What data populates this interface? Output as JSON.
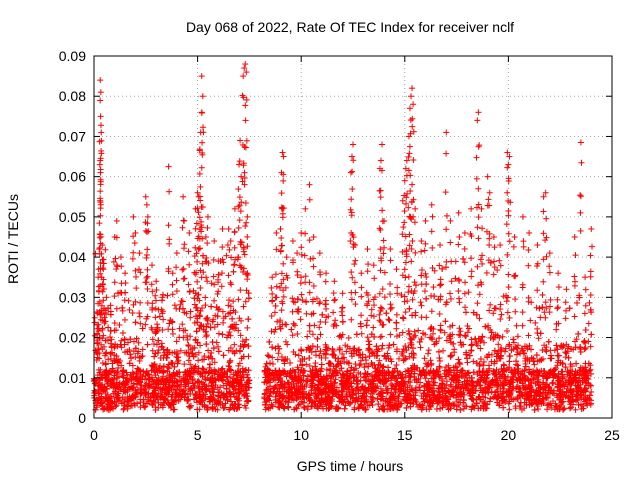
{
  "chart_data": {
    "type": "scatter",
    "title": "Day 068 of 2022, Rate Of TEC Index for receiver nclf",
    "xlabel": "GPS time / hours",
    "ylabel": "ROTI / TECUs",
    "xlim": [
      0,
      25
    ],
    "ylim": [
      0,
      0.09
    ],
    "x_ticks": [
      0,
      5,
      10,
      15,
      20,
      25
    ],
    "x_tick_labels": [
      "0",
      "5",
      "10",
      "15",
      "20",
      "25"
    ],
    "y_ticks": [
      0,
      0.01,
      0.02,
      0.03,
      0.04,
      0.05,
      0.06,
      0.07,
      0.08,
      0.09
    ],
    "y_tick_labels": [
      "0",
      "0.01",
      "0.02",
      "0.03",
      "0.04",
      "0.05",
      "0.06",
      "0.07",
      "0.08",
      "0.09"
    ],
    "grid": true,
    "marker": "+",
    "marker_color": "#ff0000",
    "data_gap_hours": [
      7.5,
      8.2
    ],
    "series": [
      {
        "name": "ROTI",
        "points": [
          [
            0.15,
            0.021
          ],
          [
            0.2,
            0.035
          ],
          [
            0.25,
            0.042
          ],
          [
            0.3,
            0.084
          ],
          [
            0.33,
            0.081
          ],
          [
            0.32,
            0.075
          ],
          [
            0.35,
            0.071
          ],
          [
            0.3,
            0.064
          ],
          [
            0.28,
            0.063
          ],
          [
            0.4,
            0.043
          ],
          [
            0.45,
            0.037
          ],
          [
            0.6,
            0.03
          ],
          [
            0.8,
            0.028
          ],
          [
            1.0,
            0.045
          ],
          [
            1.1,
            0.049
          ],
          [
            1.3,
            0.04
          ],
          [
            1.5,
            0.036
          ],
          [
            1.9,
            0.05
          ],
          [
            2.0,
            0.046
          ],
          [
            2.2,
            0.041
          ],
          [
            2.5,
            0.055
          ],
          [
            2.55,
            0.053
          ],
          [
            2.6,
            0.05
          ],
          [
            2.8,
            0.038
          ],
          [
            3.0,
            0.034
          ],
          [
            3.3,
            0.03
          ],
          [
            3.6,
            0.0625
          ],
          [
            3.8,
            0.036
          ],
          [
            4.0,
            0.041
          ],
          [
            4.3,
            0.055
          ],
          [
            4.35,
            0.049
          ],
          [
            4.6,
            0.046
          ],
          [
            4.9,
            0.052
          ],
          [
            5.0,
            0.056
          ],
          [
            5.05,
            0.055
          ],
          [
            5.1,
            0.0665
          ],
          [
            5.15,
            0.071
          ],
          [
            5.2,
            0.076
          ],
          [
            5.25,
            0.08
          ],
          [
            5.2,
            0.085
          ],
          [
            5.4,
            0.045
          ],
          [
            5.5,
            0.05
          ],
          [
            5.8,
            0.044
          ],
          [
            6.0,
            0.039
          ],
          [
            6.2,
            0.047
          ],
          [
            6.5,
            0.047
          ],
          [
            6.6,
            0.044
          ],
          [
            6.8,
            0.052
          ],
          [
            7.0,
            0.063
          ],
          [
            7.05,
            0.069
          ],
          [
            7.1,
            0.06
          ],
          [
            7.2,
            0.085
          ],
          [
            7.25,
            0.087
          ],
          [
            7.3,
            0.088
          ],
          [
            7.35,
            0.086
          ],
          [
            7.4,
            0.05
          ],
          [
            8.6,
            0.035
          ],
          [
            8.8,
            0.046
          ],
          [
            9.0,
            0.047
          ],
          [
            9.05,
            0.061
          ],
          [
            9.1,
            0.066
          ],
          [
            9.15,
            0.065
          ],
          [
            9.3,
            0.04
          ],
          [
            9.6,
            0.044
          ],
          [
            9.8,
            0.041
          ],
          [
            10.0,
            0.046
          ],
          [
            10.2,
            0.052
          ],
          [
            10.4,
            0.058
          ],
          [
            10.6,
            0.045
          ],
          [
            10.9,
            0.041
          ],
          [
            11.2,
            0.036
          ],
          [
            11.6,
            0.034
          ],
          [
            12.0,
            0.031
          ],
          [
            12.4,
            0.061
          ],
          [
            12.45,
            0.065
          ],
          [
            12.5,
            0.068
          ],
          [
            12.6,
            0.043
          ],
          [
            12.9,
            0.036
          ],
          [
            13.2,
            0.042
          ],
          [
            13.5,
            0.038
          ],
          [
            13.8,
            0.062
          ],
          [
            13.85,
            0.064
          ],
          [
            13.9,
            0.068
          ],
          [
            14.0,
            0.049
          ],
          [
            14.3,
            0.042
          ],
          [
            14.6,
            0.037
          ],
          [
            14.9,
            0.054
          ],
          [
            15.0,
            0.059
          ],
          [
            15.05,
            0.062
          ],
          [
            15.1,
            0.064
          ],
          [
            15.2,
            0.07
          ],
          [
            15.25,
            0.077
          ],
          [
            15.3,
            0.08
          ],
          [
            15.35,
            0.082
          ],
          [
            15.4,
            0.078
          ],
          [
            15.5,
            0.052
          ],
          [
            15.8,
            0.044
          ],
          [
            16.0,
            0.049
          ],
          [
            16.3,
            0.053
          ],
          [
            16.7,
            0.043
          ],
          [
            17.0,
            0.071
          ],
          [
            17.2,
            0.049
          ],
          [
            17.6,
            0.051
          ],
          [
            17.9,
            0.046
          ],
          [
            18.2,
            0.052
          ],
          [
            18.5,
            0.074
          ],
          [
            18.55,
            0.076
          ],
          [
            18.7,
            0.052
          ],
          [
            19.0,
            0.06
          ],
          [
            19.1,
            0.056
          ],
          [
            19.3,
            0.045
          ],
          [
            19.6,
            0.043
          ],
          [
            19.95,
            0.066
          ],
          [
            20.0,
            0.063
          ],
          [
            20.05,
            0.065
          ],
          [
            20.3,
            0.045
          ],
          [
            20.7,
            0.05
          ],
          [
            21.0,
            0.046
          ],
          [
            21.4,
            0.043
          ],
          [
            21.7,
            0.055
          ],
          [
            21.8,
            0.056
          ],
          [
            22.0,
            0.041
          ],
          [
            22.4,
            0.036
          ],
          [
            22.8,
            0.032
          ],
          [
            23.2,
            0.045
          ],
          [
            23.5,
            0.0685
          ],
          [
            23.7,
            0.035
          ],
          [
            24.0,
            0.047
          ]
        ]
      }
    ]
  }
}
